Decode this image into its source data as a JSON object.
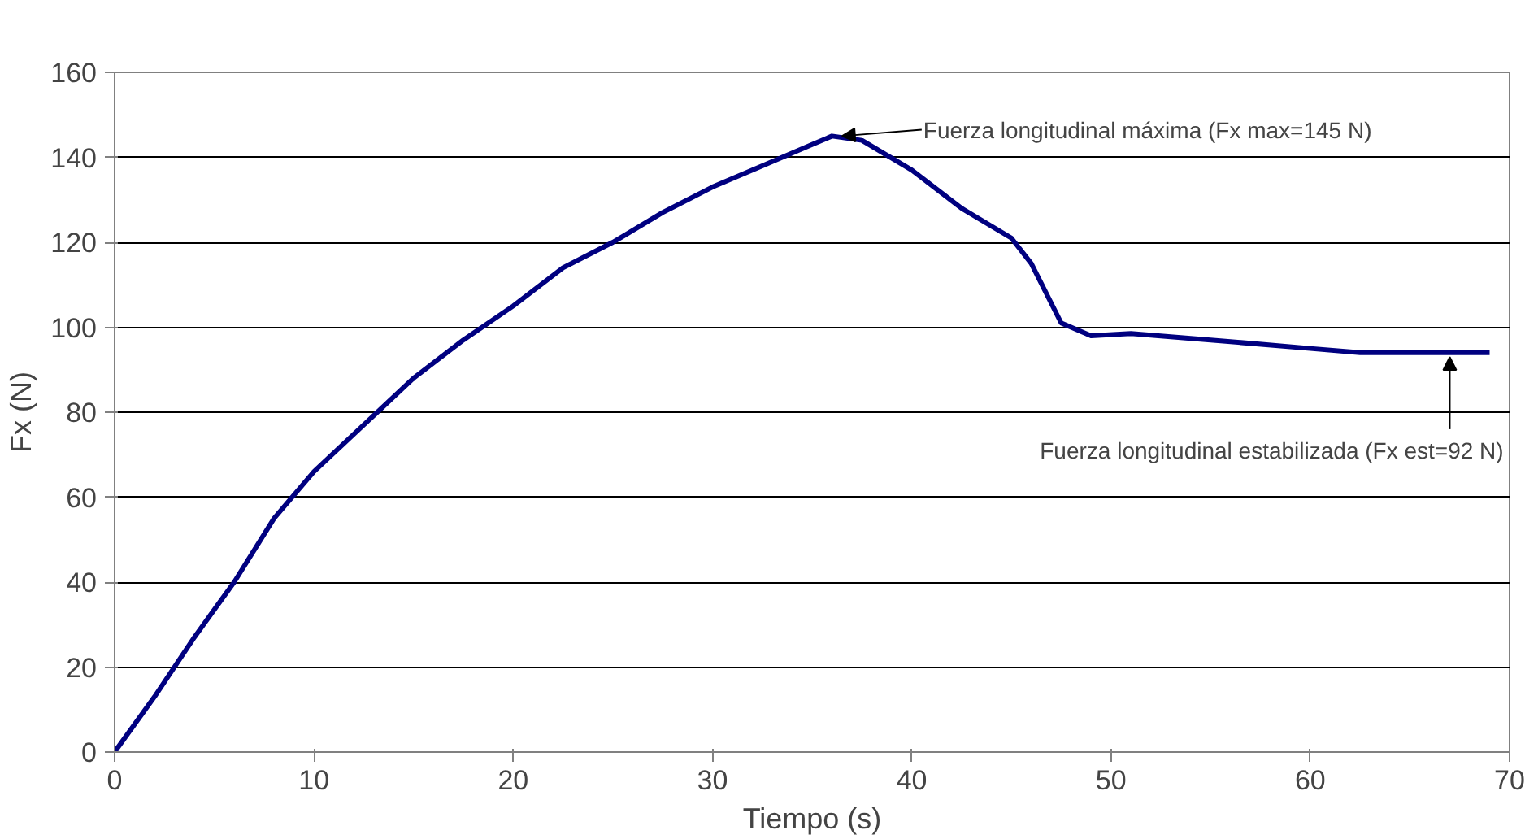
{
  "chart_data": {
    "type": "line",
    "xlabel": "Tiempo (s)",
    "ylabel": "Fx (N)",
    "x": [
      0,
      2,
      4,
      6,
      8,
      10,
      12.5,
      15,
      17.5,
      20,
      22.5,
      25,
      27.5,
      30,
      32.5,
      35,
      36,
      37.5,
      40,
      42.5,
      45,
      46,
      47.5,
      49,
      51,
      55,
      60,
      62.5,
      69
    ],
    "series": [
      {
        "color": "#000080",
        "values": [
          0,
          13,
          27,
          40,
          55,
          66,
          77,
          88,
          97,
          105,
          114,
          120,
          127,
          133,
          138,
          143,
          145,
          144,
          137,
          128,
          121,
          115,
          101,
          98,
          98.5,
          97,
          95,
          94,
          94
        ]
      }
    ],
    "xlim": [
      0,
      70
    ],
    "ylim": [
      0,
      160
    ],
    "xticks": [
      0,
      10,
      20,
      30,
      40,
      50,
      60,
      70
    ],
    "yticks": [
      0,
      20,
      40,
      60,
      80,
      100,
      120,
      140,
      160
    ],
    "grid": "y",
    "line_style": "solid",
    "marker": "none",
    "annotations": [
      {
        "text": "Fuerza longitudinal máxima (Fx max=145 N)",
        "x": 36.5,
        "y": 145
      },
      {
        "text": "Fuerza longitudinal estabilizada (Fx est=92 N)",
        "x": 67,
        "y": 94
      }
    ]
  }
}
